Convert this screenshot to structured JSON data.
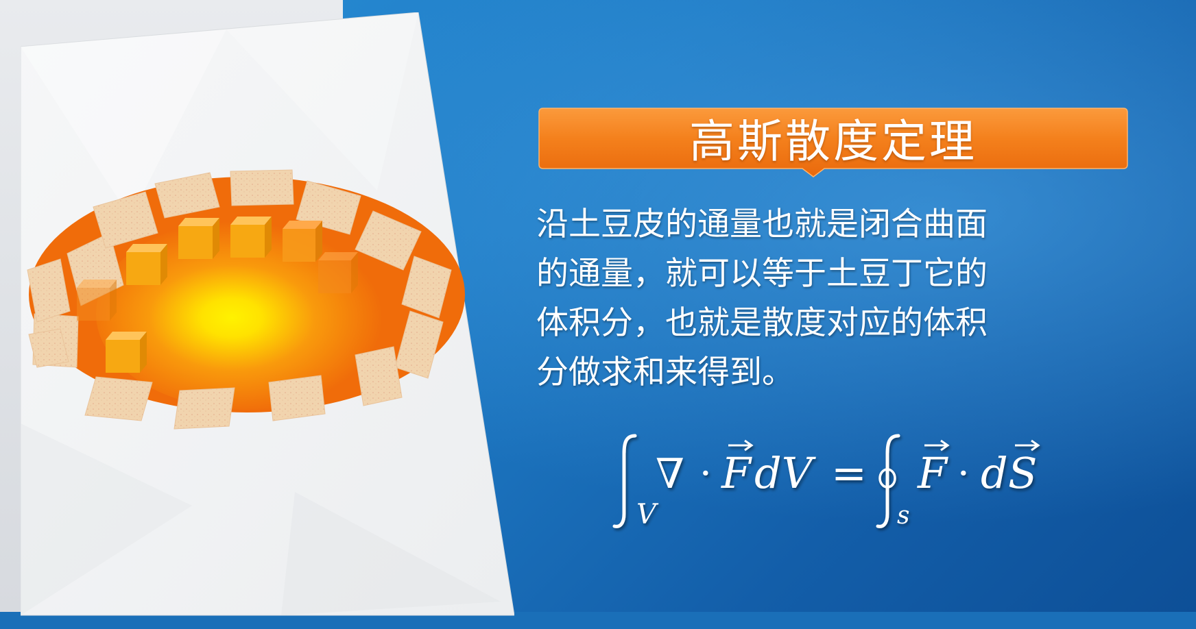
{
  "title": "高斯散度定理",
  "description_lines": [
    "沿土豆皮的通量也就是闭合曲面",
    "的通量，就可以等于土豆丁它的",
    "体积分，也就是散度对应的体积",
    "分做求和来得到。"
  ],
  "formula": {
    "lhs_integral_subscript": "V",
    "nabla": "∇",
    "dot": "·",
    "F": "F",
    "dV": "dV",
    "equals": "=",
    "rhs_integral_subscript": "s",
    "d": "d",
    "S": "S"
  },
  "colors": {
    "banner_orange": "#f27a16",
    "potato_orange": "#f06c0a",
    "glow_yellow": "#ffe800",
    "cube_orange": "#f5a012",
    "peel_tan": "#f0d2ac",
    "background_blue": "#1a6fb8"
  },
  "illustration": {
    "peel_pieces": 16,
    "cubes": 8
  }
}
